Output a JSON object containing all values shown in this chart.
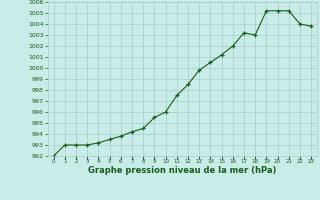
{
  "hours": [
    0,
    1,
    2,
    3,
    4,
    5,
    6,
    7,
    8,
    9,
    10,
    11,
    12,
    13,
    14,
    15,
    16,
    17,
    18,
    19,
    20,
    21,
    22,
    23
  ],
  "pressure": [
    992.0,
    993.0,
    993.0,
    993.0,
    993.2,
    993.5,
    993.8,
    994.2,
    994.5,
    995.5,
    996.0,
    997.5,
    998.5,
    999.8,
    1000.5,
    1001.2,
    1002.0,
    1003.2,
    1003.0,
    1005.2,
    1005.2,
    1005.2,
    1004.0,
    1003.8
  ],
  "line_color": "#1a5c1a",
  "marker_color": "#1a5c1a",
  "bg_color": "#c8ece8",
  "grid_color": "#a8ccc8",
  "text_color": "#1a5c1a",
  "xlabel": "Graphe pression niveau de la mer (hPa)",
  "ylim_min": 992,
  "ylim_max": 1006,
  "ytick_step": 1
}
